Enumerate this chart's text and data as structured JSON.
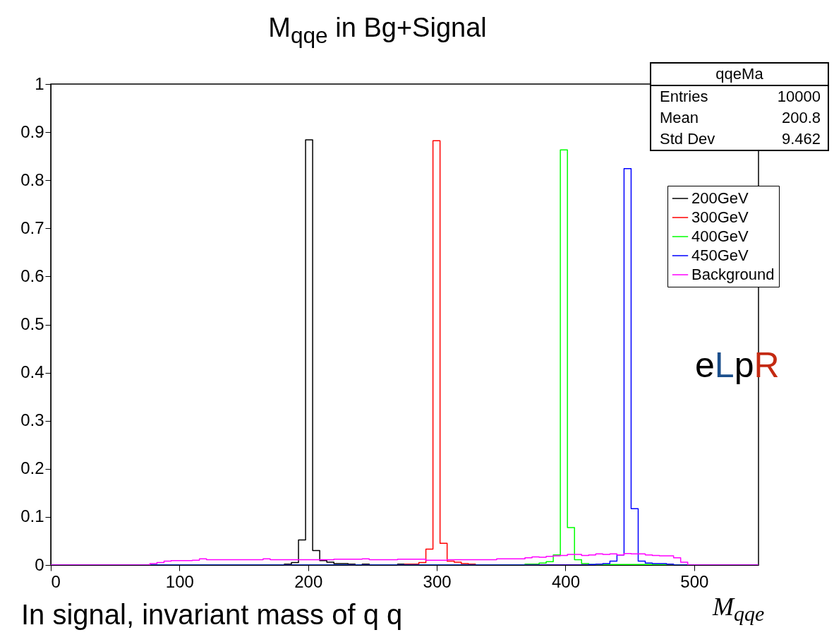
{
  "chart_data": {
    "type": "histogram",
    "title": "M$_{qqe}$ in Bg+Signal",
    "xlabel": "M$_{qqe}$",
    "bins": [
      0,
      5.5,
      11,
      16.5,
      22,
      27.5,
      33,
      38.5,
      44,
      49.5,
      55,
      60.5,
      66,
      71.5,
      77,
      82.5,
      88,
      93.5,
      99,
      104.5,
      110,
      115.5,
      121,
      126.5,
      132,
      137.5,
      143,
      148.5,
      154,
      159.5,
      165,
      170.5,
      176,
      181.5,
      187,
      192.5,
      198,
      203.5,
      209,
      214.5,
      220,
      225.5,
      231,
      236.5,
      242,
      247.5,
      253,
      258.5,
      264,
      269.5,
      275,
      280.5,
      286,
      291.5,
      297,
      302.5,
      308,
      313.5,
      319,
      324.5,
      330,
      335.5,
      341,
      346.5,
      352,
      357.5,
      363,
      368.5,
      374,
      379.5,
      385,
      390.5,
      396,
      401.5,
      407,
      412.5,
      418,
      423.5,
      429,
      434.5,
      440,
      445.5,
      451,
      456.5,
      462,
      467.5,
      473,
      478.5,
      484,
      489.5,
      495,
      500.5,
      506,
      511.5,
      517,
      522.5,
      528,
      533.5,
      539,
      544.5,
      550
    ],
    "series": [
      {
        "name": "200GeV",
        "color": "#000000",
        "values": [
          0,
          0,
          0,
          0,
          0,
          0,
          0,
          0,
          0,
          0,
          0,
          0,
          0,
          0,
          0,
          0,
          0,
          0,
          0,
          0,
          0,
          0,
          0,
          0,
          0,
          0,
          0,
          0,
          0,
          0,
          0,
          0,
          0,
          0.002,
          0.005,
          0.052,
          0.884,
          0.03,
          0.009,
          0.006,
          0.003,
          0.003,
          0.002,
          0,
          0.002,
          0,
          0,
          0,
          0,
          0.002,
          0,
          0,
          0,
          0,
          0,
          0,
          0,
          0,
          0,
          0,
          0,
          0,
          0,
          0,
          0,
          0,
          0,
          0,
          0,
          0,
          0,
          0,
          0,
          0,
          0,
          0,
          0,
          0,
          0,
          0,
          0,
          0,
          0,
          0,
          0,
          0,
          0,
          0,
          0,
          0,
          0,
          0,
          0,
          0,
          0,
          0,
          0,
          0,
          0,
          0
        ]
      },
      {
        "name": "300GeV",
        "color": "#ff0000",
        "values": [
          0,
          0,
          0,
          0,
          0,
          0,
          0,
          0,
          0,
          0,
          0,
          0,
          0,
          0,
          0,
          0,
          0,
          0,
          0,
          0,
          0,
          0,
          0,
          0,
          0,
          0,
          0,
          0,
          0,
          0,
          0,
          0,
          0,
          0,
          0,
          0,
          0,
          0,
          0,
          0,
          0,
          0,
          0,
          0,
          0,
          0,
          0,
          0,
          0,
          0,
          0.002,
          0.002,
          0.005,
          0.033,
          0.882,
          0.045,
          0.008,
          0.006,
          0.003,
          0.002,
          0,
          0,
          0,
          0,
          0,
          0,
          0,
          0,
          0,
          0,
          0,
          0,
          0,
          0,
          0,
          0,
          0,
          0,
          0,
          0,
          0,
          0,
          0,
          0,
          0,
          0,
          0,
          0,
          0,
          0,
          0,
          0,
          0,
          0,
          0,
          0,
          0,
          0,
          0,
          0
        ]
      },
      {
        "name": "400GeV",
        "color": "#00ff00",
        "values": [
          0,
          0,
          0,
          0,
          0,
          0,
          0,
          0,
          0,
          0,
          0,
          0,
          0,
          0,
          0,
          0,
          0,
          0,
          0,
          0,
          0,
          0,
          0,
          0,
          0,
          0,
          0,
          0,
          0,
          0,
          0,
          0,
          0,
          0,
          0,
          0,
          0,
          0,
          0,
          0,
          0,
          0,
          0,
          0,
          0,
          0,
          0,
          0,
          0,
          0,
          0,
          0,
          0,
          0,
          0,
          0,
          0,
          0,
          0,
          0,
          0,
          0,
          0,
          0,
          0,
          0,
          0,
          0.002,
          0.002,
          0.004,
          0.007,
          0.021,
          0.863,
          0.078,
          0.011,
          0.003,
          0.001,
          0.001,
          0.001,
          0.001,
          0.001,
          0.001,
          0.001,
          0.001,
          0.001,
          0.001,
          0.001,
          0,
          0,
          0,
          0,
          0,
          0,
          0,
          0,
          0,
          0,
          0,
          0,
          0
        ]
      },
      {
        "name": "450GeV",
        "color": "#0000ff",
        "values": [
          0,
          0,
          0,
          0,
          0,
          0,
          0,
          0,
          0,
          0,
          0,
          0,
          0,
          0,
          0,
          0,
          0,
          0,
          0,
          0,
          0,
          0,
          0,
          0,
          0,
          0,
          0,
          0,
          0,
          0,
          0,
          0,
          0,
          0,
          0,
          0,
          0,
          0,
          0,
          0,
          0,
          0,
          0,
          0,
          0,
          0,
          0,
          0,
          0,
          0,
          0,
          0,
          0,
          0,
          0,
          0,
          0,
          0,
          0,
          0,
          0,
          0,
          0,
          0,
          0,
          0,
          0,
          0,
          0,
          0,
          0,
          0,
          0,
          0,
          0,
          0,
          0.001,
          0.002,
          0.003,
          0.008,
          0.021,
          0.824,
          0.117,
          0.008,
          0.004,
          0.003,
          0.003,
          0.002,
          0,
          0,
          0,
          0,
          0,
          0,
          0,
          0,
          0,
          0,
          0,
          0
        ]
      },
      {
        "name": "Background",
        "color": "#ff00ff",
        "values": [
          0,
          0,
          0,
          0,
          0,
          0,
          0,
          0,
          0,
          0,
          0,
          0,
          0,
          0,
          0.003,
          0.005,
          0.008,
          0.009,
          0.009,
          0.009,
          0.01,
          0.013,
          0.011,
          0.011,
          0.011,
          0.011,
          0.011,
          0.011,
          0.011,
          0.011,
          0.013,
          0.011,
          0.011,
          0.011,
          0.011,
          0.011,
          0.011,
          0.011,
          0.011,
          0.011,
          0.012,
          0.012,
          0.012,
          0.012,
          0.013,
          0.011,
          0.011,
          0.011,
          0.011,
          0.012,
          0.012,
          0.012,
          0.012,
          0.01,
          0.01,
          0.01,
          0.011,
          0.011,
          0.011,
          0.011,
          0.011,
          0.011,
          0.011,
          0.013,
          0.013,
          0.013,
          0.013,
          0.015,
          0.017,
          0.016,
          0.018,
          0.019,
          0.02,
          0.022,
          0.022,
          0.02,
          0.021,
          0.023,
          0.022,
          0.023,
          0.021,
          0.024,
          0.023,
          0.023,
          0.021,
          0.02,
          0.019,
          0.019,
          0.015,
          0.006,
          0,
          0,
          0,
          0,
          0,
          0,
          0,
          0,
          0,
          0
        ]
      }
    ],
    "xlim": [
      0,
      550
    ],
    "xticks": [
      0,
      100,
      200,
      300,
      400,
      500
    ],
    "ylim": [
      0,
      1
    ],
    "yticks": [
      0,
      0.1,
      0.2,
      0.3,
      0.4,
      0.5,
      0.6,
      0.7,
      0.8,
      0.9,
      1
    ],
    "legend": "top right",
    "annotations": [
      "qqeMa",
      "Entries",
      "10000",
      "Mean",
      "200.8",
      "Std Dev",
      "9.462",
      "eLpR",
      "In signal, invariant mass of q q"
    ]
  }
}
